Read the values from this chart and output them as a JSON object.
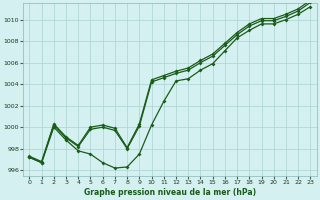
{
  "xlabel": "Graphe pression niveau de la mer (hPa)",
  "xlim": [
    -0.5,
    23.5
  ],
  "ylim": [
    995.5,
    1011.5
  ],
  "yticks": [
    996,
    998,
    1000,
    1002,
    1004,
    1006,
    1008,
    1010
  ],
  "xticks": [
    0,
    1,
    2,
    3,
    4,
    5,
    6,
    7,
    8,
    9,
    10,
    11,
    12,
    13,
    14,
    15,
    16,
    17,
    18,
    19,
    20,
    21,
    22,
    23
  ],
  "bg_color": "#d4f0f0",
  "line_color": "#1a5c1a",
  "grid_color": "#b0d8d8",
  "line1_x": [
    0,
    1,
    2,
    3,
    4,
    5,
    6,
    7,
    8,
    9,
    10,
    11,
    12,
    13,
    14,
    15,
    16,
    17,
    18,
    19,
    20,
    21,
    22,
    23
  ],
  "line1_y": [
    997.2,
    996.7,
    1000.0,
    998.8,
    997.8,
    997.5,
    996.7,
    996.2,
    996.3,
    997.5,
    1000.2,
    1002.4,
    1004.3,
    1004.5,
    1005.3,
    1005.9,
    1007.1,
    1008.3,
    1009.0,
    1009.6,
    1009.6,
    1010.0,
    1010.5,
    1011.2
  ],
  "line2_x": [
    0,
    1,
    2,
    3,
    4,
    5,
    6,
    7,
    8,
    9,
    10,
    11,
    12,
    13,
    14,
    15,
    16,
    17,
    18,
    19,
    20,
    21,
    22,
    23
  ],
  "line2_y": [
    997.2,
    996.7,
    1000.2,
    999.0,
    998.2,
    999.8,
    1000.0,
    999.7,
    998.0,
    1000.1,
    1004.2,
    1004.6,
    1005.0,
    1005.3,
    1006.0,
    1006.6,
    1007.6,
    1008.6,
    1009.4,
    1009.9,
    1009.9,
    1010.3,
    1010.8,
    1011.6
  ],
  "line3_x": [
    0,
    1,
    2,
    3,
    4,
    5,
    6,
    7,
    8,
    9,
    10,
    11,
    12,
    13,
    14,
    15,
    16,
    17,
    18,
    19,
    20,
    21,
    22,
    23
  ],
  "line3_y": [
    997.3,
    996.8,
    1000.3,
    999.1,
    998.3,
    1000.0,
    1000.2,
    999.9,
    998.1,
    1000.3,
    1004.4,
    1004.8,
    1005.2,
    1005.5,
    1006.2,
    1006.8,
    1007.8,
    1008.8,
    1009.6,
    1010.1,
    1010.1,
    1010.5,
    1011.0,
    1011.8
  ]
}
